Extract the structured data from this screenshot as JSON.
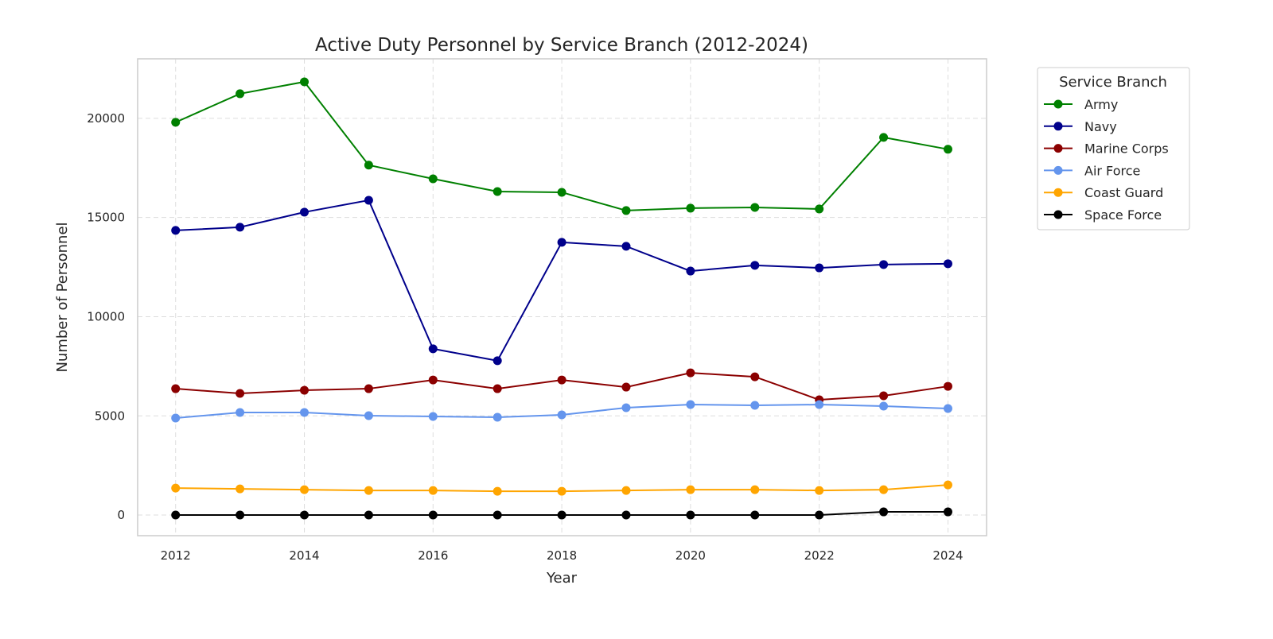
{
  "chart_data": {
    "type": "line",
    "title": "Active Duty Personnel by Service Branch (2012-2024)",
    "xlabel": "Year",
    "ylabel": "Number of Personnel",
    "xlim": [
      2011.41,
      2024.6
    ],
    "ylim": [
      -1040,
      23000
    ],
    "xticks": [
      2012,
      2014,
      2016,
      2018,
      2020,
      2022,
      2024
    ],
    "yticks": [
      0,
      5000,
      10000,
      15000,
      20000
    ],
    "grid": true,
    "legend_title": "Service Branch",
    "legend_position": "outside-top-right",
    "x": [
      2012,
      2013,
      2014,
      2015,
      2016,
      2017,
      2018,
      2019,
      2020,
      2021,
      2022,
      2023,
      2024
    ],
    "series": [
      {
        "name": "Army",
        "color": "#008000",
        "values": [
          19800,
          21240,
          21840,
          17640,
          16950,
          16310,
          16270,
          15350,
          15470,
          15510,
          15430,
          19040,
          18440
        ]
      },
      {
        "name": "Navy",
        "color": "#00008b",
        "values": [
          14350,
          14510,
          15270,
          15870,
          8380,
          7780,
          13750,
          13550,
          12300,
          12590,
          12460,
          12630,
          12670
        ]
      },
      {
        "name": "Marine Corps",
        "color": "#8b0000",
        "values": [
          6370,
          6130,
          6290,
          6370,
          6810,
          6370,
          6810,
          6450,
          7170,
          6970,
          5810,
          6010,
          6490
        ]
      },
      {
        "name": "Air Force",
        "color": "#6495ed",
        "values": [
          4890,
          5170,
          5170,
          5010,
          4970,
          4930,
          5050,
          5410,
          5570,
          5530,
          5570,
          5490,
          5370
        ]
      },
      {
        "name": "Coast Guard",
        "color": "#ffa500",
        "values": [
          1360,
          1320,
          1280,
          1240,
          1240,
          1200,
          1200,
          1240,
          1280,
          1280,
          1240,
          1280,
          1520
        ]
      },
      {
        "name": "Space Force",
        "color": "#000000",
        "values": [
          0,
          0,
          0,
          0,
          0,
          0,
          0,
          0,
          0,
          0,
          0,
          160,
          160
        ]
      }
    ]
  }
}
